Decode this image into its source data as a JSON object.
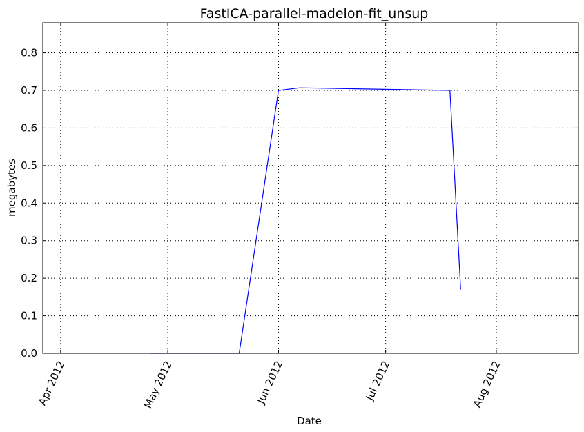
{
  "chart_data": {
    "type": "line",
    "title": "FastICA-parallel-madelon-fit_unsup",
    "xlabel": "Date",
    "ylabel": "megabytes",
    "xlim": [
      "2012-03-27",
      "2012-08-24"
    ],
    "ylim": [
      0,
      0.88
    ],
    "grid": true,
    "x_ticks": [
      "2012-04-01",
      "2012-05-01",
      "2012-06-01",
      "2012-07-01",
      "2012-08-01"
    ],
    "x_tick_labels": [
      "Apr 2012",
      "May 2012",
      "Jun 2012",
      "Jul 2012",
      "Aug 2012"
    ],
    "y_ticks": [
      0.0,
      0.1,
      0.2,
      0.3,
      0.4,
      0.5,
      0.6,
      0.7,
      0.8
    ],
    "y_tick_labels": [
      "0.0",
      "0.1",
      "0.2",
      "0.3",
      "0.4",
      "0.5",
      "0.6",
      "0.7",
      "0.8"
    ],
    "series": [
      {
        "color": "#0000ff",
        "x": [
          "2012-04-26",
          "2012-05-21",
          "2012-06-01",
          "2012-06-07",
          "2012-07-19",
          "2012-07-22"
        ],
        "values": [
          0.0,
          0.0,
          0.7,
          0.707,
          0.7,
          0.17
        ]
      }
    ]
  }
}
